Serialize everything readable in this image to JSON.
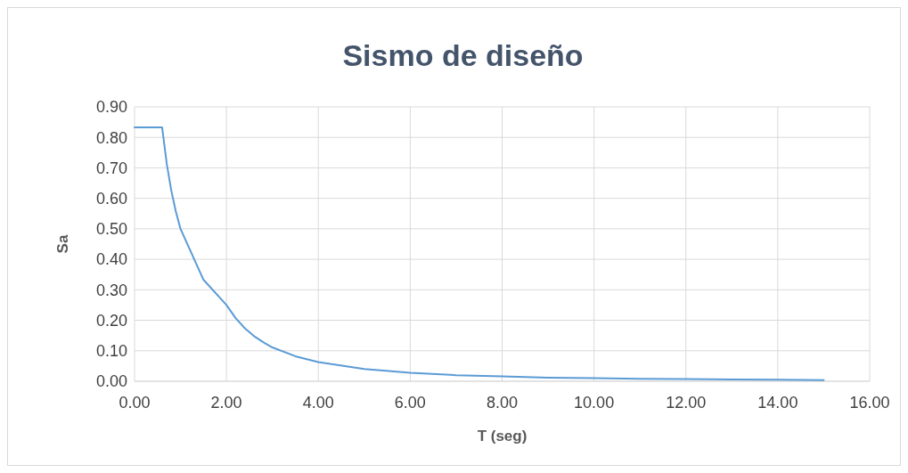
{
  "chart_data": {
    "type": "line",
    "title": "Sismo de diseño",
    "xlabel": "T (seg)",
    "ylabel": "Sa",
    "x": [
      0,
      0.6,
      0.7,
      0.8,
      0.9,
      1.0,
      1.5,
      2.0,
      2.2,
      2.4,
      2.6,
      2.8,
      3.0,
      3.5,
      4,
      5,
      6,
      7,
      8,
      9,
      10,
      11,
      12,
      13,
      14,
      15
    ],
    "series": [
      {
        "color": "#5b9bd5",
        "values": [
          0.833,
          0.833,
          0.714,
          0.625,
          0.556,
          0.5,
          0.333,
          0.25,
          0.207,
          0.174,
          0.148,
          0.128,
          0.111,
          0.082,
          0.063,
          0.04,
          0.028,
          0.02,
          0.016,
          0.012,
          0.01,
          0.008,
          0.007,
          0.006,
          0.005,
          0.004
        ]
      }
    ],
    "xlim": [
      0,
      16
    ],
    "xticks": [
      {
        "value": 0,
        "label": "0.00"
      },
      {
        "value": 2,
        "label": "2.00"
      },
      {
        "value": 4,
        "label": "4.00"
      },
      {
        "value": 6,
        "label": "6.00"
      },
      {
        "value": 8,
        "label": "8.00"
      },
      {
        "value": 10,
        "label": "10.00"
      },
      {
        "value": 12,
        "label": "12.00"
      },
      {
        "value": 14,
        "label": "14.00"
      },
      {
        "value": 16,
        "label": "16.00"
      }
    ],
    "ylim": [
      0,
      0.9
    ],
    "yticks": [
      {
        "value": 0,
        "label": "0.00"
      },
      {
        "value": 0.1,
        "label": "0.10"
      },
      {
        "value": 0.2,
        "label": "0.20"
      },
      {
        "value": 0.3,
        "label": "0.30"
      },
      {
        "value": 0.4,
        "label": "0.40"
      },
      {
        "value": 0.5,
        "label": "0.50"
      },
      {
        "value": 0.6,
        "label": "0.60"
      },
      {
        "value": 0.7,
        "label": "0.70"
      },
      {
        "value": 0.8,
        "label": "0.80"
      },
      {
        "value": 0.9,
        "label": "0.90"
      }
    ],
    "grid": true,
    "marker": "none",
    "line_style": "solid"
  }
}
